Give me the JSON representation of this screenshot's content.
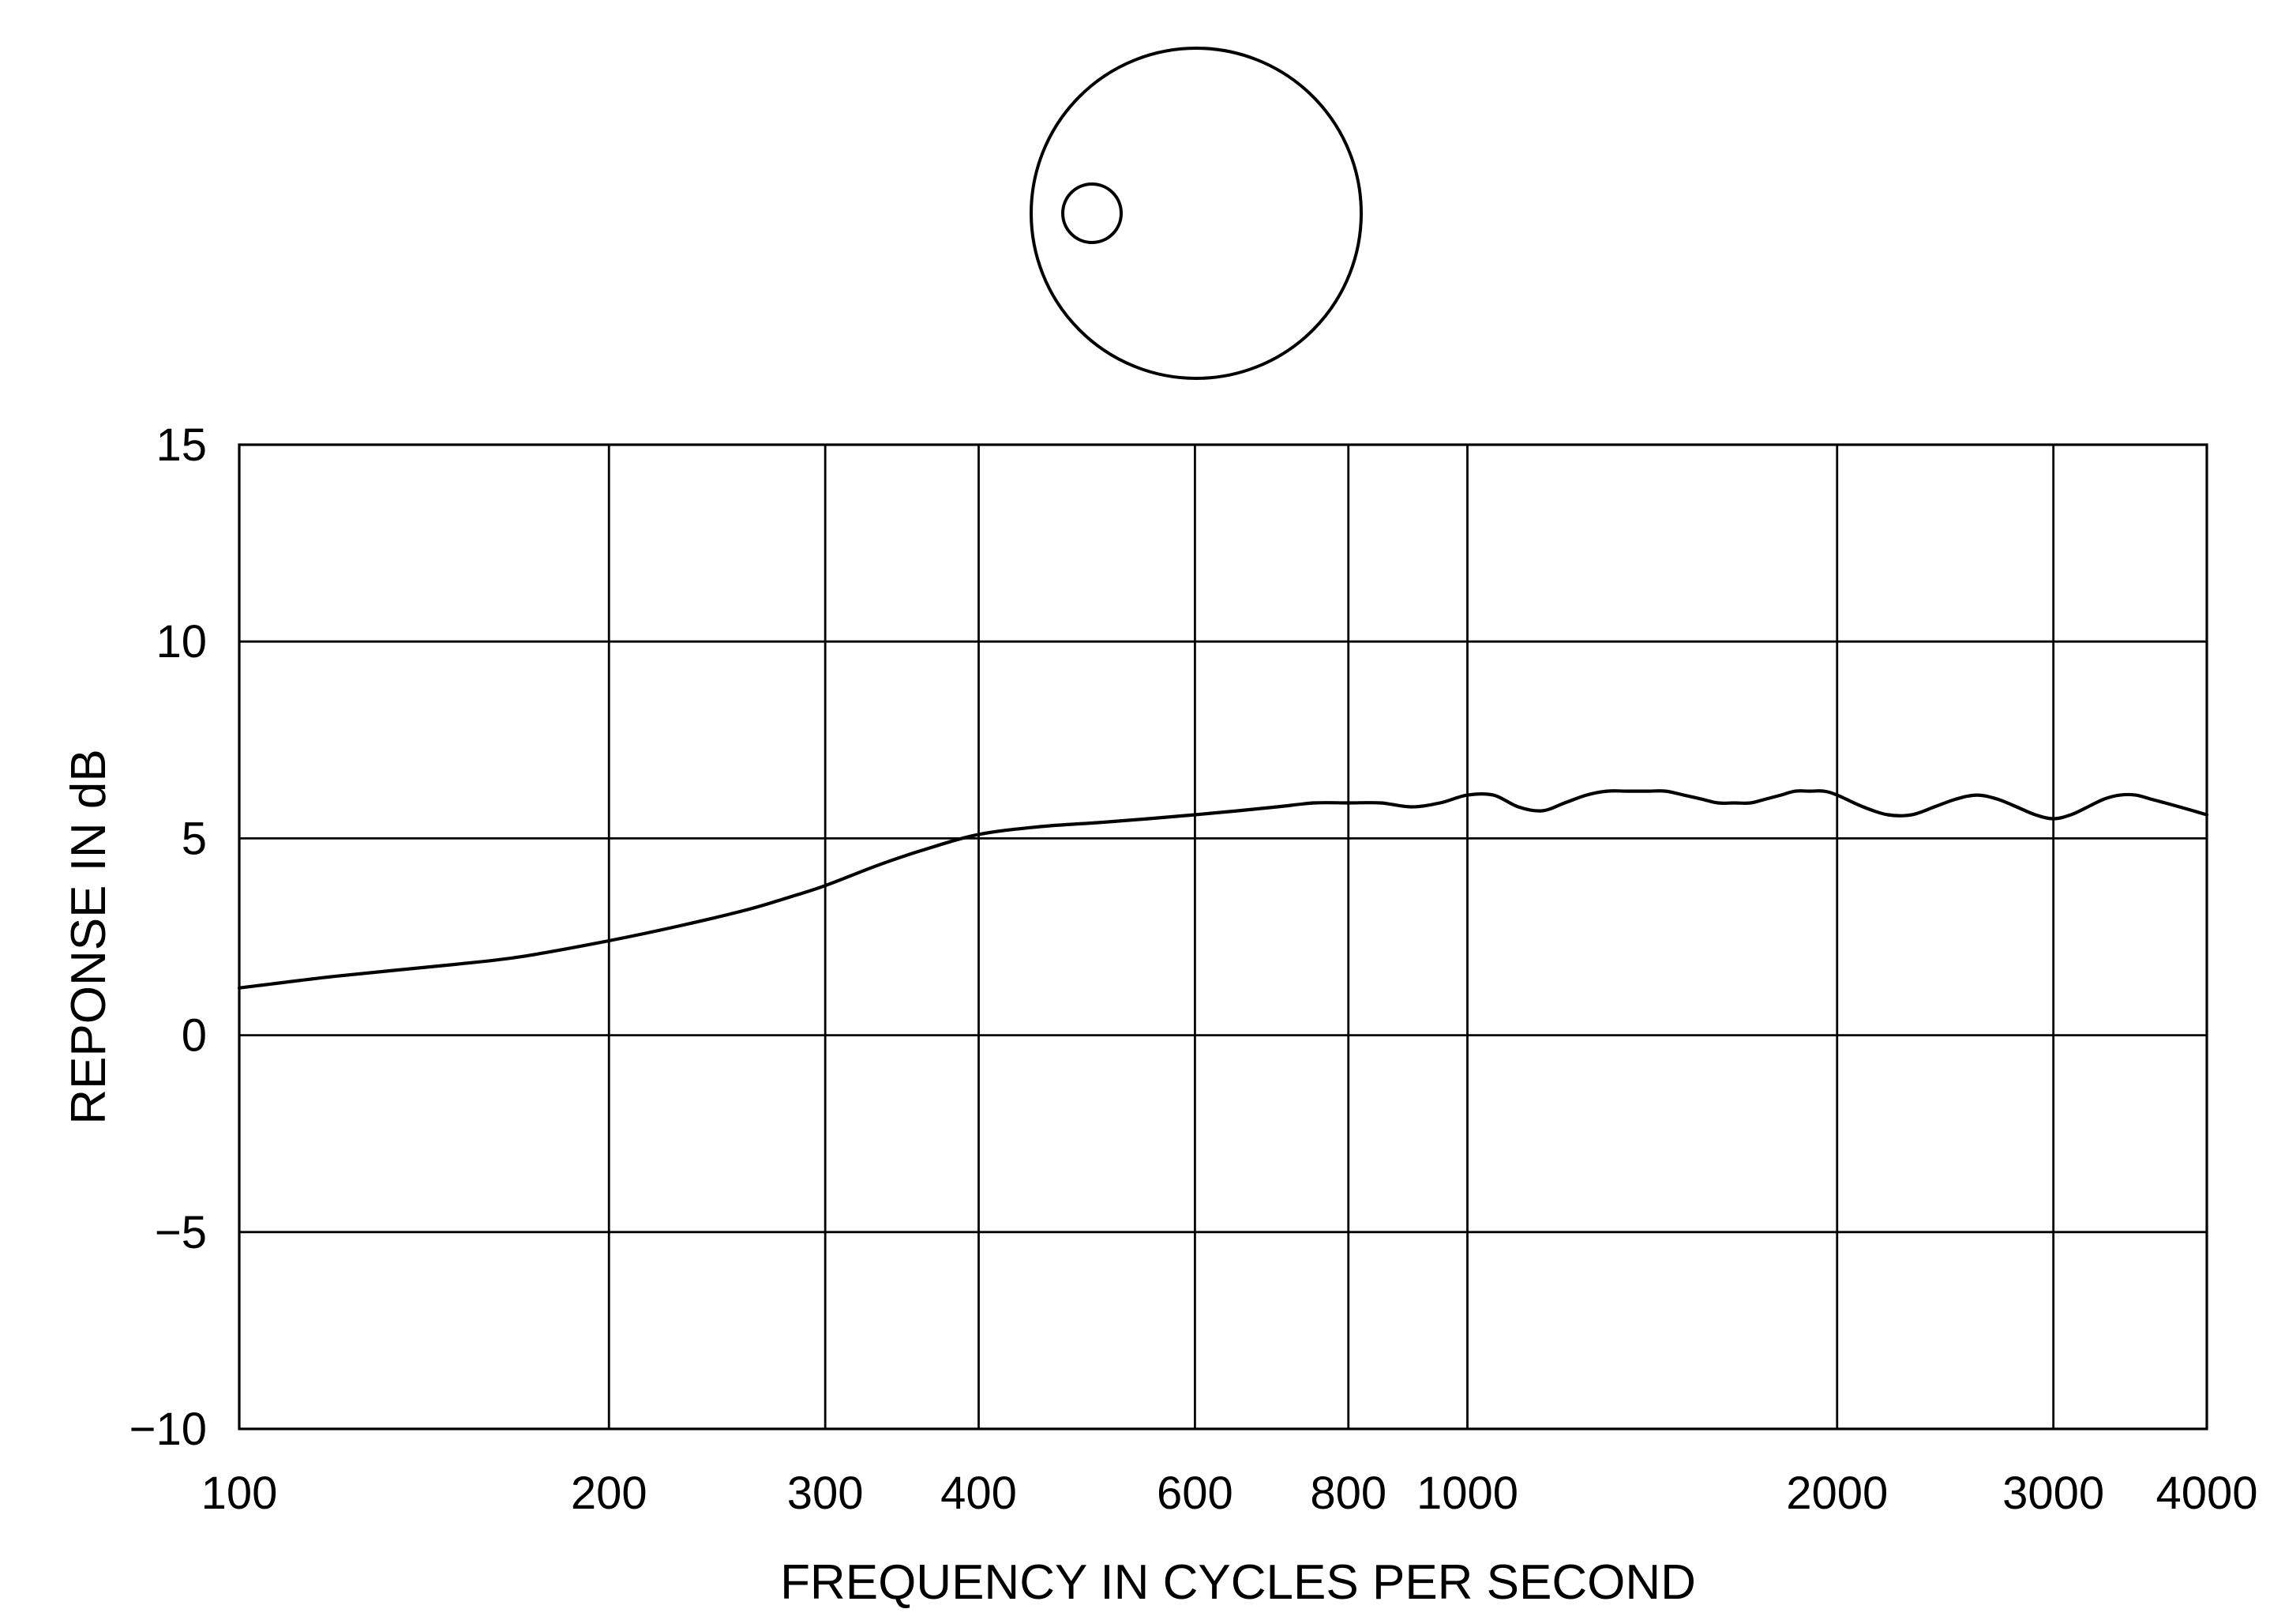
{
  "chart_data": {
    "type": "line",
    "title": "",
    "xlabel": "FREQUENCY IN CYCLES PER SECOND",
    "ylabel": "REPONSE IN dB",
    "x_scale": "log",
    "xlim": [
      100,
      4000
    ],
    "ylim": [
      -10,
      15
    ],
    "grid": true,
    "x_ticks": [
      100,
      200,
      300,
      400,
      600,
      800,
      1000,
      2000,
      3000,
      4000
    ],
    "x_tick_labels": [
      "100",
      "200",
      "300",
      "400",
      "600",
      "800",
      "1000",
      "2000",
      "3000",
      "4000"
    ],
    "y_ticks": [
      15,
      10,
      5,
      0,
      -5,
      -10
    ],
    "y_tick_labels": [
      "15",
      "10",
      "5",
      "0",
      "−5",
      "−10"
    ],
    "series": [
      {
        "x": [
          100,
          120,
          150,
          170,
          200,
          230,
          260,
          280,
          300,
          330,
          360,
          400,
          450,
          500,
          550,
          600,
          650,
          700,
          750,
          800,
          850,
          900,
          950,
          1000,
          1050,
          1100,
          1150,
          1200,
          1250,
          1300,
          1350,
          1400,
          1450,
          1500,
          1550,
          1600,
          1650,
          1700,
          1750,
          1800,
          1850,
          1900,
          1950,
          2000,
          2100,
          2200,
          2300,
          2400,
          2500,
          2600,
          2700,
          2800,
          2900,
          3000,
          3100,
          3200,
          3300,
          3400,
          3500,
          3600,
          3700,
          3800,
          3900,
          4000
        ],
        "y": [
          1.2,
          1.5,
          1.8,
          2.0,
          2.4,
          2.8,
          3.2,
          3.5,
          3.8,
          4.3,
          4.7,
          5.1,
          5.3,
          5.4,
          5.5,
          5.6,
          5.7,
          5.8,
          5.9,
          5.9,
          5.9,
          5.8,
          5.9,
          6.1,
          6.1,
          5.8,
          5.7,
          5.9,
          6.1,
          6.2,
          6.2,
          6.2,
          6.2,
          6.1,
          6.0,
          5.9,
          5.9,
          5.9,
          6.0,
          6.1,
          6.2,
          6.2,
          6.2,
          6.1,
          5.8,
          5.6,
          5.6,
          5.8,
          6.0,
          6.1,
          6.0,
          5.8,
          5.6,
          5.5,
          5.6,
          5.8,
          6.0,
          6.1,
          6.1,
          6.0,
          5.9,
          5.8,
          5.7,
          5.6
        ]
      }
    ]
  },
  "diagram": {
    "outer_circle": "polar-pattern-outer-circle",
    "inner_circle": "capsule-position-marker"
  },
  "colors": {
    "ink": "#000000",
    "background": "#ffffff"
  }
}
